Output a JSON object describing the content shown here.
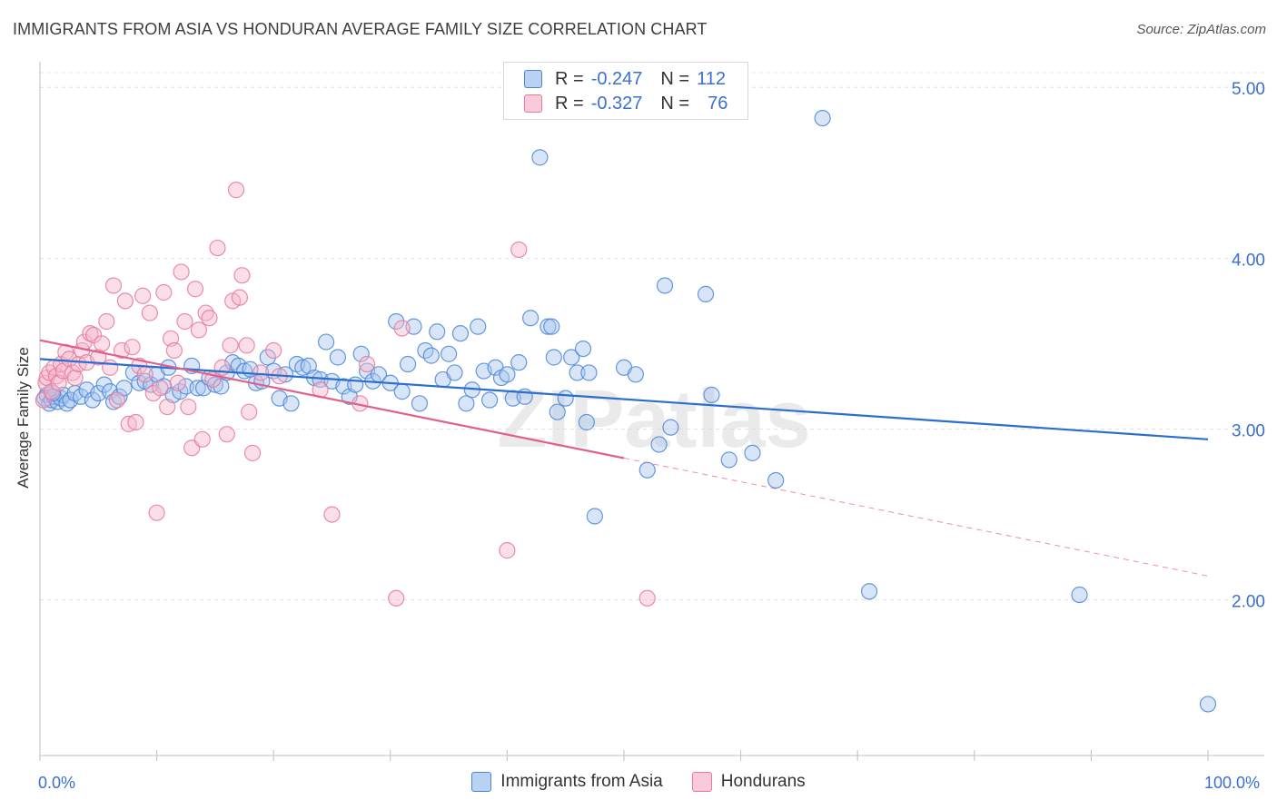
{
  "title": "IMMIGRANTS FROM ASIA VS HONDURAN AVERAGE FAMILY SIZE CORRELATION CHART",
  "source": "Source: ZipAtlas.com",
  "watermark": "ZIPatlas",
  "colors": {
    "blue": "#4a86d8",
    "blue_fill": "#a9c6ee",
    "blue_line": "#2a6fcf",
    "pink": "#e8789e",
    "pink_fill": "#f5b9cc",
    "pink_line": "#e0608a",
    "tick_text": "#3a6fcf",
    "grid": "#e2e2e2"
  },
  "legend_top": [
    {
      "r_label": "R =",
      "r_value": "-0.247",
      "n_label": "N =",
      "n_value": "112"
    },
    {
      "r_label": "R =",
      "r_value": "-0.327",
      "n_label": "N =",
      "n_value": "76"
    }
  ],
  "chart_data": {
    "type": "scatter",
    "title": "IMMIGRANTS FROM ASIA VS HONDURAN AVERAGE FAMILY SIZE CORRELATION CHART",
    "xlabel": "",
    "ylabel": "Average Family Size",
    "xlim": [
      0,
      100
    ],
    "ylim": [
      1.1,
      5.15
    ],
    "x_tick_labels": [
      "0.0%",
      "100.0%"
    ],
    "y_ticks": [
      2.0,
      3.0,
      4.0,
      5.0
    ],
    "y_tick_labels": [
      "2.00",
      "3.00",
      "4.00",
      "5.00"
    ],
    "grid": true,
    "legend_position": "top-center",
    "series": [
      {
        "name": "Immigrants from Asia",
        "color": "#4a86d8",
        "trend": {
          "x0": 0,
          "y0": 3.41,
          "x1": 100,
          "y1": 2.94
        },
        "points": [
          [
            0.4,
            3.18
          ],
          [
            0.6,
            3.2
          ],
          [
            0.8,
            3.15
          ],
          [
            1.0,
            3.17
          ],
          [
            1.2,
            3.19
          ],
          [
            1.5,
            3.16
          ],
          [
            1.8,
            3.18
          ],
          [
            2.0,
            3.2
          ],
          [
            2.3,
            3.15
          ],
          [
            2.6,
            3.17
          ],
          [
            3.0,
            3.21
          ],
          [
            3.5,
            3.19
          ],
          [
            4.0,
            3.23
          ],
          [
            4.5,
            3.17
          ],
          [
            5.0,
            3.21
          ],
          [
            5.5,
            3.26
          ],
          [
            6.0,
            3.22
          ],
          [
            6.3,
            3.16
          ],
          [
            6.8,
            3.19
          ],
          [
            7.2,
            3.24
          ],
          [
            8.0,
            3.33
          ],
          [
            8.5,
            3.27
          ],
          [
            9.0,
            3.28
          ],
          [
            9.5,
            3.26
          ],
          [
            10.0,
            3.32
          ],
          [
            10.6,
            3.25
          ],
          [
            11.0,
            3.36
          ],
          [
            11.4,
            3.2
          ],
          [
            12.0,
            3.22
          ],
          [
            12.5,
            3.25
          ],
          [
            13.0,
            3.37
          ],
          [
            13.5,
            3.24
          ],
          [
            14.0,
            3.24
          ],
          [
            14.5,
            3.3
          ],
          [
            15.0,
            3.26
          ],
          [
            15.5,
            3.25
          ],
          [
            16.0,
            3.33
          ],
          [
            16.5,
            3.39
          ],
          [
            17.0,
            3.37
          ],
          [
            17.5,
            3.34
          ],
          [
            18.0,
            3.35
          ],
          [
            18.5,
            3.27
          ],
          [
            19.0,
            3.28
          ],
          [
            19.5,
            3.42
          ],
          [
            20.0,
            3.34
          ],
          [
            20.5,
            3.18
          ],
          [
            21.0,
            3.32
          ],
          [
            21.5,
            3.15
          ],
          [
            22.0,
            3.38
          ],
          [
            22.5,
            3.36
          ],
          [
            23.0,
            3.37
          ],
          [
            23.5,
            3.3
          ],
          [
            24.0,
            3.29
          ],
          [
            24.5,
            3.51
          ],
          [
            25.0,
            3.28
          ],
          [
            25.5,
            3.42
          ],
          [
            26.0,
            3.25
          ],
          [
            26.5,
            3.19
          ],
          [
            27.0,
            3.26
          ],
          [
            27.5,
            3.44
          ],
          [
            28.0,
            3.34
          ],
          [
            28.5,
            3.28
          ],
          [
            29.0,
            3.32
          ],
          [
            30.0,
            3.27
          ],
          [
            30.5,
            3.63
          ],
          [
            31.0,
            3.22
          ],
          [
            31.5,
            3.38
          ],
          [
            32.0,
            3.6
          ],
          [
            32.5,
            3.15
          ],
          [
            33.0,
            3.46
          ],
          [
            33.5,
            3.43
          ],
          [
            34.0,
            3.57
          ],
          [
            34.5,
            3.29
          ],
          [
            35.0,
            3.44
          ],
          [
            35.5,
            3.33
          ],
          [
            36.0,
            3.56
          ],
          [
            36.5,
            3.15
          ],
          [
            37.0,
            3.23
          ],
          [
            37.5,
            3.6
          ],
          [
            38.0,
            3.34
          ],
          [
            38.5,
            3.17
          ],
          [
            39.0,
            3.36
          ],
          [
            39.5,
            3.3
          ],
          [
            40.0,
            3.32
          ],
          [
            40.5,
            3.18
          ],
          [
            41.0,
            3.39
          ],
          [
            41.5,
            3.19
          ],
          [
            42.0,
            3.65
          ],
          [
            42.8,
            4.59
          ],
          [
            43.5,
            3.6
          ],
          [
            43.8,
            3.6
          ],
          [
            44.0,
            3.42
          ],
          [
            44.3,
            3.1
          ],
          [
            45.0,
            3.18
          ],
          [
            45.5,
            3.42
          ],
          [
            46.0,
            3.33
          ],
          [
            46.5,
            3.47
          ],
          [
            46.8,
            3.04
          ],
          [
            47.0,
            3.33
          ],
          [
            47.5,
            2.49
          ],
          [
            50.0,
            3.36
          ],
          [
            51.0,
            3.32
          ],
          [
            52.0,
            2.76
          ],
          [
            53.0,
            2.91
          ],
          [
            53.5,
            3.84
          ],
          [
            54.0,
            3.01
          ],
          [
            57.0,
            3.79
          ],
          [
            57.5,
            3.2
          ],
          [
            59.0,
            2.82
          ],
          [
            61.0,
            2.86
          ],
          [
            63.0,
            2.7
          ],
          [
            67.0,
            4.82
          ],
          [
            71.0,
            2.05
          ],
          [
            89.0,
            2.03
          ],
          [
            100.0,
            1.39
          ],
          [
            1.1,
            3.21
          ]
        ]
      },
      {
        "name": "Hondurans",
        "color": "#e8789e",
        "trend": {
          "x0": 0,
          "y0": 3.52,
          "x1": 50,
          "y1": 2.83,
          "dash_to": {
            "x": 100,
            "y": 2.14
          }
        },
        "points": [
          [
            0.3,
            3.17
          ],
          [
            0.5,
            3.27
          ],
          [
            0.6,
            3.3
          ],
          [
            0.8,
            3.33
          ],
          [
            1.0,
            3.22
          ],
          [
            1.2,
            3.36
          ],
          [
            1.4,
            3.31
          ],
          [
            1.6,
            3.27
          ],
          [
            1.8,
            3.38
          ],
          [
            2.0,
            3.34
          ],
          [
            2.2,
            3.45
          ],
          [
            2.5,
            3.41
          ],
          [
            2.8,
            3.33
          ],
          [
            3.0,
            3.3
          ],
          [
            3.3,
            3.38
          ],
          [
            3.6,
            3.46
          ],
          [
            3.8,
            3.51
          ],
          [
            4.0,
            3.39
          ],
          [
            4.3,
            3.56
          ],
          [
            4.6,
            3.55
          ],
          [
            5.0,
            3.42
          ],
          [
            5.3,
            3.5
          ],
          [
            5.7,
            3.63
          ],
          [
            6.0,
            3.36
          ],
          [
            6.3,
            3.84
          ],
          [
            6.6,
            3.17
          ],
          [
            7.0,
            3.46
          ],
          [
            7.3,
            3.75
          ],
          [
            7.6,
            3.03
          ],
          [
            7.9,
            3.48
          ],
          [
            8.2,
            3.04
          ],
          [
            8.5,
            3.37
          ],
          [
            8.8,
            3.78
          ],
          [
            9.0,
            3.32
          ],
          [
            9.4,
            3.68
          ],
          [
            9.7,
            3.21
          ],
          [
            10.0,
            2.51
          ],
          [
            10.3,
            3.24
          ],
          [
            10.6,
            3.8
          ],
          [
            10.9,
            3.13
          ],
          [
            11.2,
            3.53
          ],
          [
            11.5,
            3.46
          ],
          [
            11.8,
            3.27
          ],
          [
            12.1,
            3.92
          ],
          [
            12.4,
            3.63
          ],
          [
            12.7,
            3.13
          ],
          [
            13.0,
            2.89
          ],
          [
            13.3,
            3.82
          ],
          [
            13.6,
            3.58
          ],
          [
            13.9,
            2.94
          ],
          [
            14.2,
            3.68
          ],
          [
            14.5,
            3.65
          ],
          [
            14.8,
            3.29
          ],
          [
            15.2,
            4.06
          ],
          [
            15.6,
            3.36
          ],
          [
            16.0,
            2.97
          ],
          [
            16.3,
            3.49
          ],
          [
            16.5,
            3.75
          ],
          [
            16.8,
            4.4
          ],
          [
            17.1,
            3.77
          ],
          [
            17.3,
            3.9
          ],
          [
            17.7,
            3.49
          ],
          [
            17.9,
            3.1
          ],
          [
            18.2,
            2.86
          ],
          [
            18.9,
            3.33
          ],
          [
            20.0,
            3.46
          ],
          [
            20.5,
            3.31
          ],
          [
            24.0,
            3.23
          ],
          [
            25.0,
            2.5
          ],
          [
            28.0,
            3.38
          ],
          [
            27.4,
            3.15
          ],
          [
            30.5,
            2.01
          ],
          [
            31.0,
            3.59
          ],
          [
            40.0,
            2.29
          ],
          [
            41.0,
            4.05
          ],
          [
            52.0,
            2.01
          ]
        ]
      }
    ]
  },
  "legend_bottom": [
    {
      "label": "Immigrants from Asia"
    },
    {
      "label": "Hondurans"
    }
  ]
}
